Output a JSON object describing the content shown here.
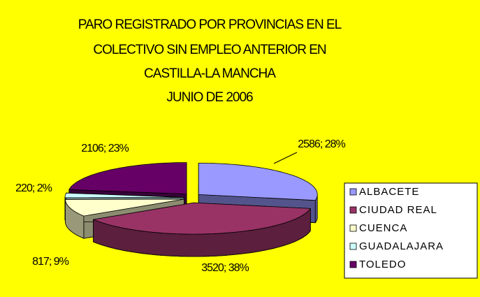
{
  "chart_data": {
    "type": "pie3d",
    "title": [
      "PARO REGISTRADO POR PROVINCIAS EN EL",
      "COLECTIVO SIN EMPLEO ANTERIOR EN",
      "CASTILLA-LA MANCHA",
      "JUNIO DE 2006"
    ],
    "categories": [
      "ALBACETE",
      "CIUDAD REAL",
      "CUENCA",
      "GUADALAJARA",
      "TOLEDO"
    ],
    "values": [
      2586,
      3520,
      817,
      220,
      2106
    ],
    "value_labels": [
      "2586; 28%",
      "3520; 38%",
      "817; 9%",
      "220; 2%",
      "2106; 23%"
    ],
    "colors": [
      "#9999ff",
      "#993366",
      "#ffffcc",
      "#ccffff",
      "#660066"
    ],
    "legend": "right"
  }
}
